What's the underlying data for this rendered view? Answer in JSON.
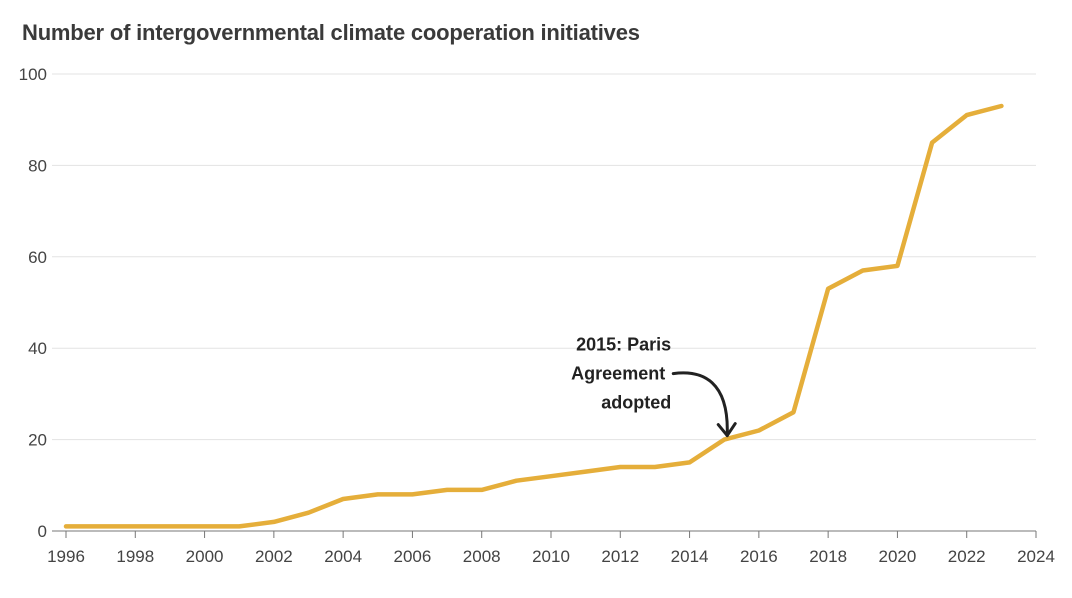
{
  "chart_data": {
    "type": "line",
    "title": "Number of intergovernmental climate cooperation initiatives",
    "xlabel": "",
    "ylabel": "",
    "xlim": [
      1996,
      2024
    ],
    "ylim": [
      0,
      100
    ],
    "x_ticks": [
      "1996",
      "1998",
      "2000",
      "2002",
      "2004",
      "2006",
      "2008",
      "2010",
      "2012",
      "2014",
      "2016",
      "2018",
      "2020",
      "2022",
      "2024"
    ],
    "y_ticks": [
      "0",
      "20",
      "40",
      "60",
      "80",
      "100"
    ],
    "grid": true,
    "series": [
      {
        "color": "#E5AE3A",
        "points": [
          [
            1996,
            1
          ],
          [
            1997,
            1
          ],
          [
            1998,
            1
          ],
          [
            1999,
            1
          ],
          [
            2000,
            1
          ],
          [
            2001,
            1
          ],
          [
            2002,
            2
          ],
          [
            2003,
            4
          ],
          [
            2004,
            7
          ],
          [
            2005,
            8
          ],
          [
            2006,
            8
          ],
          [
            2007,
            9
          ],
          [
            2008,
            9
          ],
          [
            2009,
            11
          ],
          [
            2010,
            12
          ],
          [
            2011,
            13
          ],
          [
            2012,
            14
          ],
          [
            2013,
            14
          ],
          [
            2014,
            15
          ],
          [
            2015,
            20
          ],
          [
            2016,
            22
          ],
          [
            2017,
            26
          ],
          [
            2018,
            53
          ],
          [
            2019,
            57
          ],
          [
            2020,
            58
          ],
          [
            2021,
            85
          ],
          [
            2022,
            91
          ],
          [
            2023,
            93
          ]
        ]
      }
    ],
    "annotations": [
      {
        "lines": [
          "2015: Paris",
          "Agreement",
          "adopted"
        ],
        "target": [
          2015,
          20
        ]
      }
    ]
  }
}
